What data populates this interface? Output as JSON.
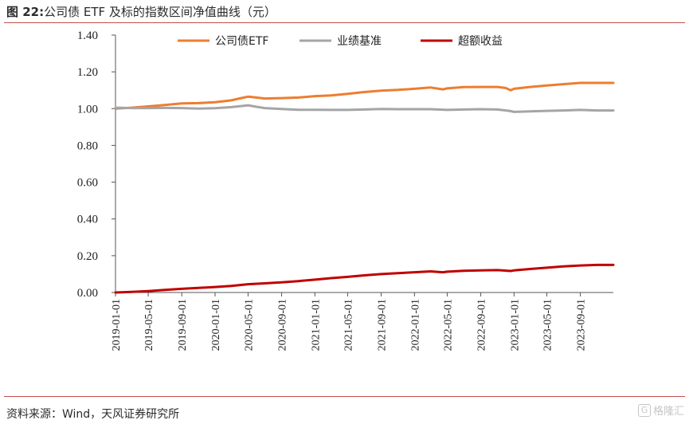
{
  "header": {
    "fig_no": "图 22:",
    "title": "公司债 ETF 及标的指数区间净值曲线（元）"
  },
  "footer": {
    "source": "资料来源：Wind，天风证券研究所",
    "watermark": "格隆汇",
    "watermark_mark": "G"
  },
  "chart_data": {
    "type": "line",
    "title": "公司债 ETF 及标的指数区间净值曲线（元）",
    "xlabel": "",
    "ylabel": "",
    "ylim": [
      0,
      1.4
    ],
    "yticks": [
      "0.00",
      "0.20",
      "0.40",
      "0.60",
      "0.80",
      "1.00",
      "1.20",
      "1.40"
    ],
    "xticks": [
      "2019-01-01",
      "2019-05-01",
      "2019-09-01",
      "2020-01-01",
      "2020-05-01",
      "2020-09-01",
      "2021-01-01",
      "2021-05-01",
      "2021-09-01",
      "2022-01-01",
      "2022-05-01",
      "2022-09-01",
      "2023-01-01",
      "2023-05-01",
      "2023-09-01"
    ],
    "x_end": "2023-12-31",
    "grid": false,
    "legend_position": "top",
    "series": [
      {
        "name": "公司债ETF",
        "color": "#ed7d31",
        "points": [
          [
            "2019-01-01",
            1.0
          ],
          [
            "2019-03-01",
            1.005
          ],
          [
            "2019-05-01",
            1.012
          ],
          [
            "2019-07-01",
            1.02
          ],
          [
            "2019-09-01",
            1.028
          ],
          [
            "2019-11-01",
            1.03
          ],
          [
            "2020-01-01",
            1.035
          ],
          [
            "2020-03-01",
            1.045
          ],
          [
            "2020-04-15",
            1.06
          ],
          [
            "2020-05-01",
            1.065
          ],
          [
            "2020-06-01",
            1.06
          ],
          [
            "2020-07-01",
            1.055
          ],
          [
            "2020-09-01",
            1.057
          ],
          [
            "2020-11-01",
            1.06
          ],
          [
            "2021-01-01",
            1.068
          ],
          [
            "2021-03-01",
            1.072
          ],
          [
            "2021-05-01",
            1.08
          ],
          [
            "2021-07-01",
            1.09
          ],
          [
            "2021-09-01",
            1.098
          ],
          [
            "2021-11-01",
            1.102
          ],
          [
            "2022-01-01",
            1.108
          ],
          [
            "2022-03-01",
            1.115
          ],
          [
            "2022-04-15",
            1.105
          ],
          [
            "2022-05-01",
            1.11
          ],
          [
            "2022-07-01",
            1.117
          ],
          [
            "2022-09-01",
            1.118
          ],
          [
            "2022-11-01",
            1.118
          ],
          [
            "2022-12-01",
            1.112
          ],
          [
            "2022-12-20",
            1.1
          ],
          [
            "2023-01-01",
            1.108
          ],
          [
            "2023-03-01",
            1.118
          ],
          [
            "2023-05-01",
            1.126
          ],
          [
            "2023-07-01",
            1.133
          ],
          [
            "2023-09-01",
            1.14
          ],
          [
            "2023-11-01",
            1.14
          ],
          [
            "2023-12-31",
            1.14
          ]
        ]
      },
      {
        "name": "业绩基准",
        "color": "#a5a5a5",
        "points": [
          [
            "2019-01-01",
            1.005
          ],
          [
            "2019-03-01",
            1.003
          ],
          [
            "2019-05-01",
            1.003
          ],
          [
            "2019-07-01",
            1.004
          ],
          [
            "2019-09-01",
            1.003
          ],
          [
            "2019-11-01",
            1.0
          ],
          [
            "2020-01-01",
            1.002
          ],
          [
            "2020-03-01",
            1.008
          ],
          [
            "2020-04-15",
            1.015
          ],
          [
            "2020-05-01",
            1.018
          ],
          [
            "2020-06-01",
            1.01
          ],
          [
            "2020-07-01",
            1.003
          ],
          [
            "2020-09-01",
            0.998
          ],
          [
            "2020-11-01",
            0.994
          ],
          [
            "2021-01-01",
            0.994
          ],
          [
            "2021-03-01",
            0.993
          ],
          [
            "2021-05-01",
            0.993
          ],
          [
            "2021-07-01",
            0.995
          ],
          [
            "2021-09-01",
            0.998
          ],
          [
            "2021-11-01",
            0.997
          ],
          [
            "2022-01-01",
            0.997
          ],
          [
            "2022-03-01",
            0.997
          ],
          [
            "2022-05-01",
            0.993
          ],
          [
            "2022-07-01",
            0.995
          ],
          [
            "2022-09-01",
            0.997
          ],
          [
            "2022-11-01",
            0.995
          ],
          [
            "2022-12-15",
            0.988
          ],
          [
            "2023-01-01",
            0.982
          ],
          [
            "2023-03-01",
            0.985
          ],
          [
            "2023-05-01",
            0.988
          ],
          [
            "2023-07-01",
            0.99
          ],
          [
            "2023-09-01",
            0.993
          ],
          [
            "2023-11-01",
            0.99
          ],
          [
            "2023-12-31",
            0.99
          ]
        ]
      },
      {
        "name": "超额收益",
        "color": "#c00000",
        "points": [
          [
            "2019-01-01",
            0.0
          ],
          [
            "2019-03-01",
            0.003
          ],
          [
            "2019-05-01",
            0.008
          ],
          [
            "2019-07-01",
            0.014
          ],
          [
            "2019-09-01",
            0.02
          ],
          [
            "2019-11-01",
            0.025
          ],
          [
            "2020-01-01",
            0.03
          ],
          [
            "2020-03-01",
            0.036
          ],
          [
            "2020-05-01",
            0.045
          ],
          [
            "2020-07-01",
            0.05
          ],
          [
            "2020-09-01",
            0.055
          ],
          [
            "2020-11-01",
            0.062
          ],
          [
            "2021-01-01",
            0.07
          ],
          [
            "2021-03-01",
            0.078
          ],
          [
            "2021-05-01",
            0.085
          ],
          [
            "2021-07-01",
            0.093
          ],
          [
            "2021-09-01",
            0.1
          ],
          [
            "2021-11-01",
            0.105
          ],
          [
            "2022-01-01",
            0.11
          ],
          [
            "2022-03-01",
            0.115
          ],
          [
            "2022-04-15",
            0.11
          ],
          [
            "2022-05-01",
            0.113
          ],
          [
            "2022-07-01",
            0.118
          ],
          [
            "2022-09-01",
            0.12
          ],
          [
            "2022-11-01",
            0.122
          ],
          [
            "2022-12-20",
            0.117
          ],
          [
            "2023-01-01",
            0.12
          ],
          [
            "2023-03-01",
            0.128
          ],
          [
            "2023-05-01",
            0.135
          ],
          [
            "2023-07-01",
            0.142
          ],
          [
            "2023-09-01",
            0.147
          ],
          [
            "2023-11-01",
            0.15
          ],
          [
            "2023-12-31",
            0.15
          ]
        ]
      }
    ]
  }
}
